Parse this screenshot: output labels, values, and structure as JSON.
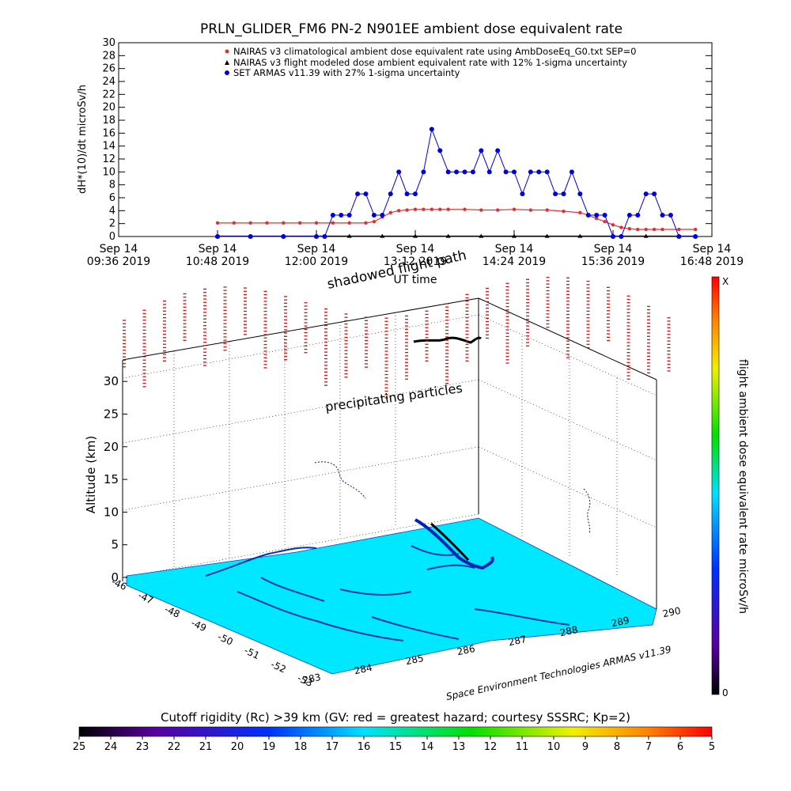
{
  "chart_data": [
    {
      "type": "scatter",
      "title": "PRLN_GLIDER_FM6 PN-2 N901EE ambient dose equivalent rate",
      "ylabel": "dH*(10)/dt microSv/h",
      "xlabel": "UT time",
      "ylim": [
        0,
        30
      ],
      "yticks": [
        "0",
        "2",
        "4",
        "6",
        "8",
        "10",
        "12",
        "14",
        "16",
        "18",
        "20",
        "22",
        "24",
        "26",
        "28",
        "30"
      ],
      "xticks": [
        {
          "date": "Sep 14",
          "time": "09:36 2019"
        },
        {
          "date": "Sep 14",
          "time": "10:48 2019"
        },
        {
          "date": "Sep 14",
          "time": "12:00 2019"
        },
        {
          "date": "Sep 14",
          "time": "13:12 2019"
        },
        {
          "date": "Sep 14",
          "time": "14:24 2019"
        },
        {
          "date": "Sep 14",
          "time": "15:36 2019"
        },
        {
          "date": "Sep 14",
          "time": "16:48 2019"
        }
      ],
      "legend": [
        "NAIRAS v3 climatological ambient dose equivalent rate using AmbDoseEq_G0.txt SEP=0",
        "NAIRAS v3 flight modeled dose ambient equivalent rate with 12% 1-sigma uncertainty",
        "SET ARMAS v11.39 with 27% 1-sigma uncertainty"
      ],
      "legend_position": "top",
      "series": [
        {
          "name": "NAIRAS v3 climatological ambient dose equivalent rate using AmbDoseEq_G0.txt SEP=0",
          "color": "#e03030",
          "x_minutes": [
            72,
            84,
            96,
            108,
            120,
            132,
            144,
            156,
            168,
            180,
            186,
            192,
            198,
            204,
            210,
            216,
            222,
            228,
            234,
            240,
            252,
            264,
            276,
            288,
            300,
            312,
            324,
            336,
            342,
            348,
            354,
            360,
            366,
            372,
            378,
            384,
            390,
            396,
            408,
            420
          ],
          "values": [
            2.1,
            2.1,
            2.1,
            2.1,
            2.1,
            2.1,
            2.1,
            2.1,
            2.1,
            2.1,
            2.3,
            3.0,
            3.7,
            4.0,
            4.1,
            4.2,
            4.2,
            4.2,
            4.2,
            4.2,
            4.2,
            4.1,
            4.1,
            4.2,
            4.1,
            4.1,
            3.9,
            3.7,
            3.3,
            2.8,
            2.3,
            1.8,
            1.4,
            1.2,
            1.1,
            1.1,
            1.1,
            1.1,
            1.1,
            1.1
          ]
        },
        {
          "name": "NAIRAS v3 flight modeled dose ambient equivalent rate with 12% 1-sigma uncertainty",
          "color": "#000000",
          "x_minutes": [
            72,
            96,
            120,
            144,
            168,
            192,
            216,
            240,
            264,
            288,
            312,
            336,
            360,
            384,
            408,
            420
          ],
          "values": [
            0.05,
            0.05,
            0.05,
            0.05,
            0.05,
            0.05,
            0.05,
            0.05,
            0.05,
            0.05,
            0.05,
            0.05,
            0.05,
            0.05,
            0.05,
            0.05
          ]
        },
        {
          "name": "SET ARMAS v11.39 with 27% 1-sigma uncertainty",
          "color": "#0000e0",
          "x_minutes": [
            72,
            96,
            120,
            144,
            150,
            156,
            162,
            168,
            174,
            180,
            186,
            192,
            198,
            204,
            210,
            216,
            222,
            228,
            234,
            240,
            246,
            252,
            258,
            264,
            270,
            276,
            282,
            288,
            294,
            300,
            306,
            312,
            318,
            324,
            330,
            336,
            342,
            348,
            354,
            360,
            366,
            372,
            378,
            384,
            390,
            396,
            402,
            408,
            420
          ],
          "values": [
            0,
            0,
            0,
            0,
            0,
            3.3,
            3.3,
            3.3,
            6.6,
            6.6,
            3.3,
            3.3,
            6.6,
            10.0,
            6.6,
            6.6,
            10.0,
            16.6,
            13.3,
            10.0,
            10.0,
            10.0,
            10.0,
            13.3,
            10.0,
            13.3,
            10.0,
            10.0,
            6.6,
            10.0,
            10.0,
            10.0,
            6.6,
            6.6,
            10.0,
            6.6,
            3.3,
            3.3,
            3.3,
            0,
            0,
            3.3,
            3.3,
            6.6,
            6.6,
            3.3,
            3.3,
            0,
            0
          ]
        }
      ]
    },
    {
      "type": "3d-map",
      "zlabel": "Altitude (km)",
      "zticks": [
        "0",
        "5",
        "10",
        "15",
        "20",
        "25",
        "30"
      ],
      "y_ticks": [
        "-46",
        "-47",
        "-48",
        "-49",
        "-50",
        "-51",
        "-52",
        "-53"
      ],
      "x_ticks": [
        "283",
        "284",
        "285",
        "286",
        "287",
        "288",
        "289",
        "290"
      ],
      "annotations": [
        "shadowed flight path",
        "precipitating particles",
        "Space Environment Technologies ARMAS v11.39"
      ],
      "colorbar_right": {
        "label": "flight ambient dose equivalent rate microSv/h",
        "top": "X",
        "bottom": "0"
      },
      "colorbar_bottom": {
        "label": "Cutoff rigidity (Rc) >39 km (GV: red = greatest hazard; courtesy SSSRC; Kp=2)",
        "ticks": [
          "25",
          "24",
          "23",
          "22",
          "21",
          "20",
          "19",
          "18",
          "17",
          "16",
          "15",
          "14",
          "13",
          "12",
          "11",
          "10",
          "9",
          "8",
          "7",
          "6",
          "5"
        ]
      }
    }
  ]
}
